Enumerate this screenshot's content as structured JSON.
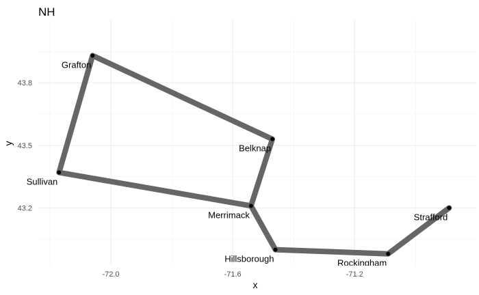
{
  "chart_data": {
    "type": "line",
    "title": "NH",
    "xlabel": "x",
    "ylabel": "y",
    "xlim": [
      -72.2,
      -70.8
    ],
    "ylim": [
      43.0,
      44.0
    ],
    "x_ticks": [
      -72.0,
      -71.6,
      -71.2
    ],
    "x_tick_labels": [
      "-72.0",
      "-71.6",
      "-71.2"
    ],
    "y_ticks": [
      43.2,
      43.5,
      43.8
    ],
    "y_tick_labels": [
      "43.2",
      "43.5",
      "43.8"
    ],
    "grid": true,
    "line_color": "#666666",
    "point_color": "#000000",
    "points": [
      {
        "label": "Grafton",
        "x": -72.06,
        "y": 43.93
      },
      {
        "label": "Belknap",
        "x": -71.47,
        "y": 43.53
      },
      {
        "label": "Merrimack",
        "x": -71.54,
        "y": 43.21
      },
      {
        "label": "Sullivan",
        "x": -72.17,
        "y": 43.37
      },
      {
        "label": "Hillsborough",
        "x": -71.46,
        "y": 43.0
      },
      {
        "label": "Rockingham",
        "x": -71.09,
        "y": 42.98
      },
      {
        "label": "Strafford",
        "x": -70.89,
        "y": 43.2
      }
    ],
    "paths": [
      {
        "name": "",
        "sequence": [
          "Sullivan",
          "Grafton",
          "Belknap",
          "Merrimack",
          "Sullivan"
        ]
      },
      {
        "name": "",
        "sequence": [
          "Merrimack",
          "Hillsborough",
          "Rockingham",
          "Strafford"
        ]
      }
    ]
  }
}
